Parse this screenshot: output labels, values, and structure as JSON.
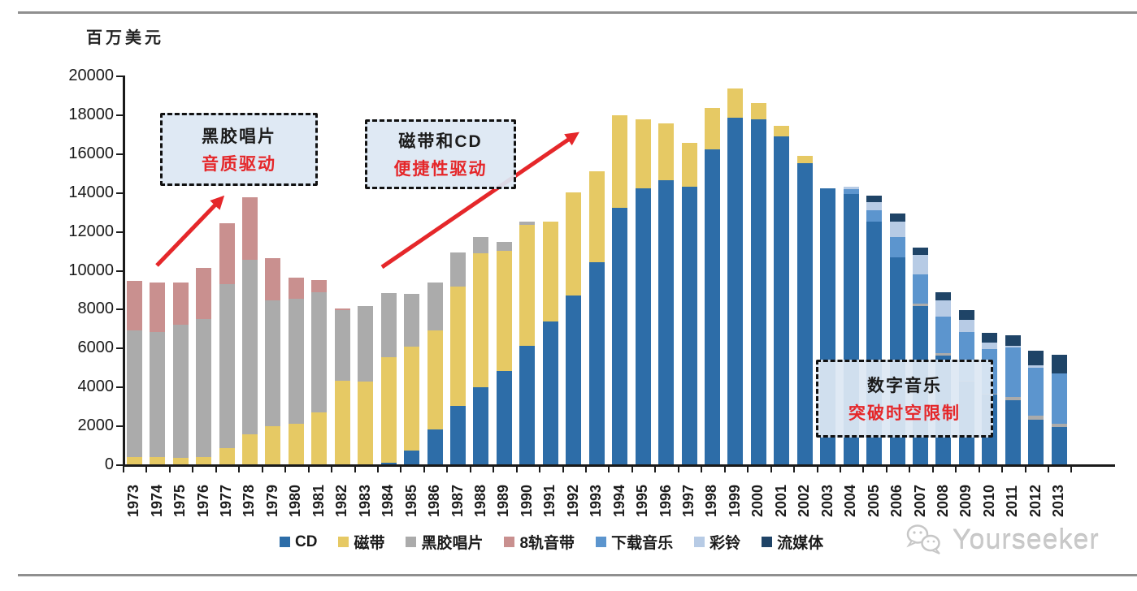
{
  "y_axis": {
    "title": "百万美元",
    "ticks": [
      0,
      2000,
      4000,
      6000,
      8000,
      10000,
      12000,
      14000,
      16000,
      18000,
      20000
    ]
  },
  "chart_data": {
    "type": "bar",
    "stacked": true,
    "title": "",
    "xlabel": "",
    "ylabel": "百万美元",
    "ylim": [
      0,
      20000
    ],
    "grid": false,
    "legend_position": "bottom",
    "categories": [
      1973,
      1974,
      1975,
      1976,
      1977,
      1978,
      1979,
      1980,
      1981,
      1982,
      1983,
      1984,
      1985,
      1986,
      1987,
      1988,
      1989,
      1990,
      1991,
      1992,
      1993,
      1994,
      1995,
      1996,
      1997,
      1998,
      1999,
      2000,
      2001,
      2002,
      2003,
      2004,
      2005,
      2006,
      2007,
      2008,
      2009,
      2010,
      2011,
      2012,
      2013
    ],
    "series": [
      {
        "name": "CD",
        "color": "#2D6DA8",
        "values": [
          0,
          0,
          0,
          0,
          0,
          0,
          0,
          0,
          0,
          0,
          0,
          100,
          710,
          1800,
          3000,
          3950,
          4800,
          6100,
          7350,
          8670,
          10400,
          13210,
          14210,
          14630,
          14280,
          16200,
          17830,
          17735,
          16885,
          15470,
          14180,
          13900,
          12500,
          10660,
          8155,
          5580,
          4250,
          3580,
          3285,
          2310,
          1920
        ]
      },
      {
        "name": "磁带",
        "color": "#E6C964",
        "values": [
          360,
          360,
          320,
          360,
          850,
          1550,
          1960,
          2100,
          2660,
          4290,
          4260,
          5400,
          5360,
          5100,
          6150,
          6900,
          6200,
          6230,
          5120,
          5320,
          4670,
          4760,
          3550,
          2920,
          2270,
          2145,
          1505,
          835,
          530,
          410,
          0,
          0,
          0,
          0,
          0,
          0,
          0,
          0,
          0,
          0,
          0
        ]
      },
      {
        "name": "黑胶唱片",
        "color": "#ABABAB",
        "values": [
          6540,
          6450,
          6870,
          7100,
          8420,
          8970,
          6480,
          6400,
          6190,
          3630,
          3880,
          3325,
          2685,
          2440,
          1750,
          830,
          455,
          140,
          0,
          0,
          0,
          0,
          0,
          0,
          0,
          0,
          0,
          0,
          0,
          0,
          0,
          0,
          0,
          0,
          110,
          125,
          60,
          70,
          180,
          200,
          180
        ]
      },
      {
        "name": "8轨音带",
        "color": "#C9908F",
        "values": [
          2540,
          2530,
          2150,
          2640,
          3130,
          3200,
          2150,
          1120,
          630,
          100,
          0,
          0,
          0,
          0,
          0,
          0,
          0,
          0,
          0,
          0,
          0,
          0,
          0,
          0,
          0,
          0,
          0,
          0,
          0,
          0,
          0,
          0,
          0,
          0,
          0,
          0,
          0,
          0,
          0,
          0,
          0
        ]
      },
      {
        "name": "下载音乐",
        "color": "#5C95CE",
        "values": [
          0,
          0,
          0,
          0,
          0,
          0,
          0,
          0,
          0,
          0,
          0,
          0,
          0,
          0,
          0,
          0,
          0,
          0,
          0,
          0,
          0,
          0,
          0,
          0,
          0,
          0,
          0,
          0,
          0,
          0,
          0,
          250,
          550,
          1040,
          1490,
          1890,
          2500,
          2280,
          2535,
          2465,
          2575
        ]
      },
      {
        "name": "彩铃",
        "color": "#B7CBE5",
        "values": [
          0,
          0,
          0,
          0,
          0,
          0,
          0,
          0,
          0,
          0,
          0,
          0,
          0,
          0,
          0,
          0,
          0,
          0,
          0,
          0,
          0,
          0,
          0,
          0,
          0,
          0,
          0,
          0,
          0,
          0,
          0,
          130,
          420,
          795,
          1000,
          835,
          620,
          350,
          100,
          120,
          0
        ]
      },
      {
        "name": "流媒体",
        "color": "#1F4467",
        "values": [
          0,
          0,
          0,
          0,
          0,
          0,
          0,
          0,
          0,
          0,
          0,
          0,
          0,
          0,
          0,
          0,
          0,
          0,
          0,
          0,
          0,
          0,
          0,
          0,
          0,
          0,
          0,
          0,
          0,
          0,
          0,
          0,
          330,
          390,
          390,
          420,
          490,
          485,
          525,
          765,
          975
        ]
      }
    ]
  },
  "annotations": [
    {
      "id": "vinyl",
      "line1": "黑胶唱片",
      "line2": "音质驱动"
    },
    {
      "id": "cd",
      "line1": "磁带和CD",
      "line2": "便捷性驱动"
    },
    {
      "id": "digital",
      "line1": "数字音乐",
      "line2": "突破时空限制"
    }
  ],
  "colors": {
    "accent_red": "#E5272A",
    "axis": "#1a1a1a",
    "callout_bg": "#DDE7F3"
  },
  "watermark": {
    "text": "Yourseeker"
  }
}
